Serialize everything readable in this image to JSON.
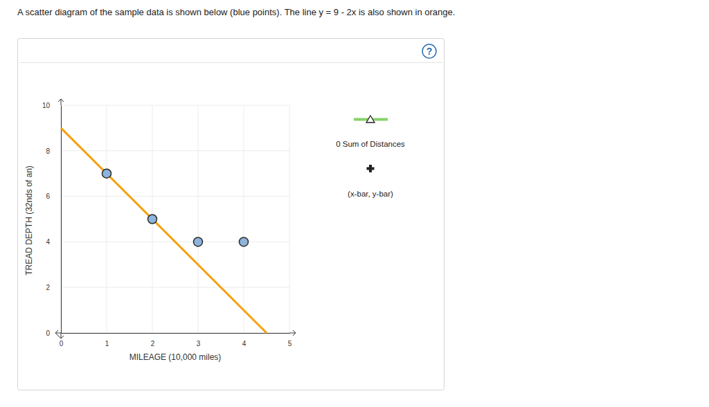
{
  "page": {
    "caption": "A scatter diagram of the sample data is shown below (blue points). The line y = 9 - 2x is also shown in orange.",
    "help_icon": "?"
  },
  "chart_data": {
    "type": "scatter",
    "x_label": "MILEAGE (10,000 miles)",
    "y_label": "TREAD DEPTH (32nds of an)",
    "series": [
      {
        "type": "scatter",
        "color": "#8db4dc",
        "marker": "circle",
        "x": [
          1,
          2,
          3,
          4
        ],
        "values": [
          7,
          5,
          4,
          4
        ]
      },
      {
        "type": "line",
        "color": "#f5a00f",
        "line_style": "solid",
        "x": [
          0,
          4.5
        ],
        "values": [
          9,
          0
        ]
      }
    ],
    "xlim": [
      0,
      5
    ],
    "ylim": [
      0,
      10
    ],
    "xticks": [
      0,
      1,
      2,
      3,
      4,
      5
    ],
    "yticks": [
      0,
      2,
      4,
      6,
      8,
      10
    ],
    "grid": true,
    "tools": [
      {
        "label": "0 Sum of Distances"
      },
      {
        "label": "(x-bar, y-bar)"
      }
    ]
  }
}
